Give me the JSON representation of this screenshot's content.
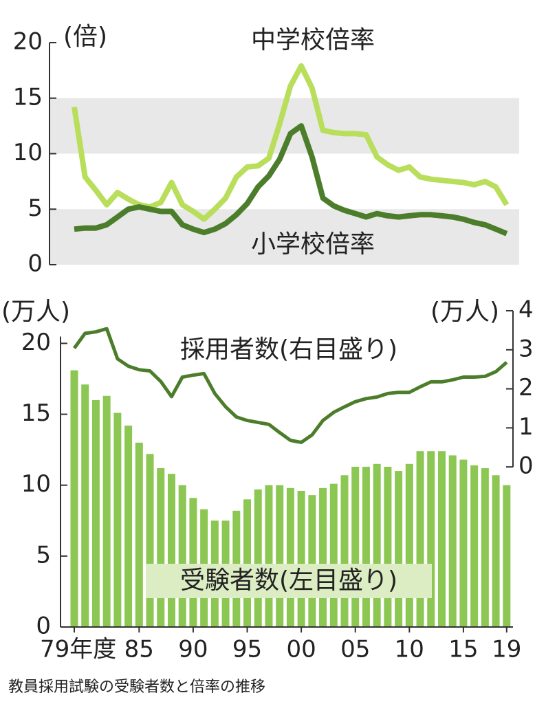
{
  "chart_data": [
    {
      "type": "line",
      "ylabel": "(倍)",
      "ylim": [
        0,
        20
      ],
      "yticks": [
        0,
        5,
        10,
        15,
        20
      ],
      "bands": true,
      "band_color": "#e8e8e8",
      "series": [
        {
          "name": "中学校倍率",
          "color": "#b8de5c",
          "values": [
            14.2,
            7.9,
            6.7,
            5.4,
            6.5,
            5.9,
            5.4,
            5.2,
            5.6,
            7.4,
            5.4,
            4.8,
            4.1,
            5.0,
            6.0,
            7.9,
            8.8,
            8.9,
            9.6,
            12.7,
            16.1,
            17.9,
            15.9,
            12.1,
            11.9,
            11.8,
            11.8,
            11.7,
            9.7,
            9.0,
            8.5,
            8.8,
            7.9,
            7.7,
            7.6,
            7.5,
            7.4,
            7.2,
            7.5,
            7.0,
            5.4
          ]
        },
        {
          "name": "小学校倍率",
          "color": "#4b7d2b",
          "values": [
            3.2,
            3.3,
            3.3,
            3.6,
            4.3,
            5.0,
            5.2,
            5.0,
            4.8,
            4.8,
            3.6,
            3.2,
            2.9,
            3.2,
            3.7,
            4.5,
            5.5,
            7.0,
            8.0,
            9.5,
            11.8,
            12.5,
            9.7,
            6.0,
            5.3,
            4.9,
            4.6,
            4.3,
            4.6,
            4.4,
            4.3,
            4.4,
            4.5,
            4.5,
            4.4,
            4.3,
            4.1,
            3.8,
            3.6,
            3.2,
            2.8
          ]
        }
      ]
    },
    {
      "type": "bar",
      "ylabel": "(万人)",
      "y2label": "(万人)",
      "categories": [
        "79年度",
        null,
        null,
        null,
        null,
        null,
        "85",
        null,
        null,
        null,
        null,
        "90",
        null,
        null,
        null,
        null,
        "95",
        null,
        null,
        null,
        null,
        "00",
        null,
        null,
        null,
        null,
        "05",
        null,
        null,
        null,
        null,
        "10",
        null,
        null,
        null,
        null,
        "15",
        null,
        null,
        null,
        "19"
      ],
      "ylim": [
        0,
        22.3
      ],
      "yticks": [
        0,
        5,
        10,
        15,
        20
      ],
      "y2lim": [
        -4.1,
        4
      ],
      "y2ticks": [
        0,
        1,
        2,
        3,
        4
      ],
      "series": [
        {
          "name": "受験者数(左目盛り)",
          "type": "bar",
          "color": "#8cc653",
          "values": [
            18.1,
            17.1,
            16.0,
            16.3,
            15.1,
            14.2,
            13.0,
            12.2,
            11.2,
            10.8,
            10.0,
            9.1,
            8.3,
            7.5,
            7.5,
            8.2,
            9.0,
            9.7,
            10.0,
            10.0,
            9.8,
            9.6,
            9.3,
            9.8,
            10.1,
            10.7,
            11.3,
            11.3,
            11.5,
            11.3,
            11.0,
            11.5,
            12.4,
            12.4,
            12.4,
            12.1,
            11.8,
            11.4,
            11.2,
            10.7,
            10.0
          ]
        },
        {
          "name": "採用者数(右目盛り)",
          "type": "line",
          "axis": "y2",
          "color": "#4b7d2b",
          "values": [
            3.04,
            3.42,
            3.46,
            3.54,
            2.77,
            2.58,
            2.49,
            2.46,
            2.19,
            1.8,
            2.3,
            2.35,
            2.39,
            1.88,
            1.54,
            1.28,
            1.19,
            1.14,
            1.09,
            0.88,
            0.68,
            0.63,
            0.82,
            1.19,
            1.4,
            1.54,
            1.67,
            1.75,
            1.79,
            1.88,
            1.91,
            1.91,
            2.05,
            2.18,
            2.18,
            2.23,
            2.3,
            2.3,
            2.32,
            2.44,
            2.68
          ]
        }
      ]
    }
  ],
  "caption": "教員採用試験の受験者数と倍率の推移"
}
